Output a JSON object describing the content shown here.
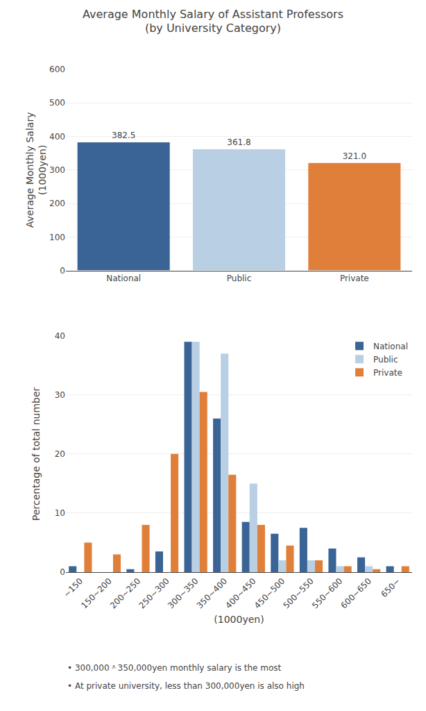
{
  "title": "Average Monthly Salary of Assistant Professors\n(by University Category)",
  "annotations": [
    "• 300,000＾350,000yen monthly salary is the most",
    "• At private university, less than 300,000yen is also high"
  ],
  "chart_data": [
    {
      "type": "bar",
      "categories": [
        "National",
        "Public",
        "Private"
      ],
      "values": [
        382.5,
        361.8,
        321.0
      ],
      "value_labels": [
        "382.5",
        "361.8",
        "321.0"
      ],
      "colors": [
        "#3a6496",
        "#b8cfe4",
        "#e07f3a"
      ],
      "ylabel": "Average Monthly Salary\n(1000yen)",
      "ylim": [
        0,
        600
      ],
      "yticks": [
        0,
        100,
        200,
        300,
        400,
        500,
        600
      ],
      "grid": true,
      "data_labels": true
    },
    {
      "type": "bar",
      "categories": [
        "~150",
        "150~200",
        "200~250",
        "250~300",
        "300~350",
        "350~400",
        "400~450",
        "450~500",
        "500~550",
        "550~600",
        "600~650",
        "650~"
      ],
      "series": [
        {
          "name": "National",
          "color": "#3a6496",
          "values": [
            1.0,
            0.0,
            0.5,
            3.5,
            39.0,
            26.0,
            8.5,
            6.5,
            7.5,
            4.0,
            2.5,
            1.0
          ]
        },
        {
          "name": "Public",
          "color": "#b8cfe4",
          "values": [
            0.0,
            0.0,
            0.0,
            0.0,
            39.0,
            37.0,
            15.0,
            2.0,
            2.0,
            1.0,
            1.0,
            0.0
          ]
        },
        {
          "name": "Private",
          "color": "#e07f3a",
          "values": [
            5.0,
            3.0,
            8.0,
            20.0,
            30.5,
            16.5,
            8.0,
            4.5,
            2.0,
            1.0,
            0.5,
            1.0
          ]
        }
      ],
      "ylabel": "Percentage of total number",
      "xlabel": "(1000yen)",
      "ylim": [
        0,
        40
      ],
      "yticks": [
        0,
        10,
        20,
        30,
        40
      ],
      "grid": true,
      "legend": "upper right"
    }
  ]
}
